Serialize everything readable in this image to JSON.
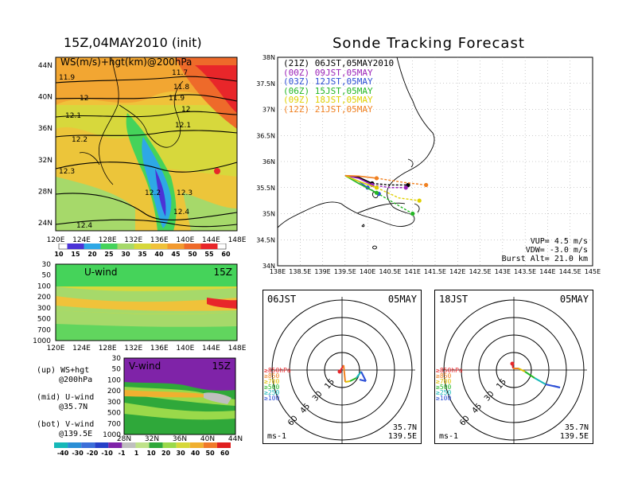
{
  "colors": {
    "ws_scale": [
      "#4b33d6",
      "#2ea8e6",
      "#45d35a",
      "#a6d96a",
      "#d7d83c",
      "#f0c23a",
      "#f29a2f",
      "#ee6a2a",
      "#e8262a"
    ],
    "v_scale": [
      "#16b8b8",
      "#2a8fd6",
      "#3b6fd9",
      "#2640c8",
      "#7f23a8",
      "#bfbfbf",
      "#bfe28a",
      "#2fa83a",
      "#9ad94a",
      "#d6d83a",
      "#f0b030",
      "#f07a2a",
      "#e02020"
    ],
    "path_21Z": "#000000",
    "path_00Z": "#9b22b8",
    "path_03Z": "#2c4fd6",
    "path_06Z": "#24b824",
    "path_09Z": "#e0d000",
    "path_12Z": "#f08020"
  },
  "left_top": {
    "title": "15Z,04MAY2010 (init)",
    "overlay_label": "WS(m/s)+hgt(km)@200hPa",
    "contour_labels": [
      "11.9",
      "11.7",
      "11.8",
      "12",
      "11.9",
      "12",
      "12.1",
      "12.1",
      "12.2",
      "12.3",
      "12.2",
      "12.3",
      "12.4",
      "12.4"
    ]
  },
  "left_mid": {
    "title": "U-wind",
    "time": "15Z"
  },
  "left_bot": {
    "title": "V-wind",
    "time": "15Z"
  },
  "notes": [
    {
      "a": "(up) WS+hgt",
      "b": "@200hPa"
    },
    {
      "a": "(mid) U-wind",
      "b": "@35.7N"
    },
    {
      "a": "(bot) V-wind",
      "b": "@139.5E"
    }
  ],
  "sonde": {
    "title": "Sonde Tracking Forecast",
    "legend": [
      {
        "code": "(21Z)",
        "text": "06JST,05MAY2010",
        "color": "#000000"
      },
      {
        "code": "(00Z)",
        "text": "09JST,05MAY",
        "color": "#9b22b8"
      },
      {
        "code": "(03Z)",
        "text": "12JST,05MAY",
        "color": "#2c4fd6"
      },
      {
        "code": "(06Z)",
        "text": "15JST,05MAY",
        "color": "#24b824"
      },
      {
        "code": "(09Z)",
        "text": "18JST,05MAY",
        "color": "#e0d000"
      },
      {
        "code": "(12Z)",
        "text": "21JST,05MAY",
        "color": "#f08020"
      }
    ],
    "vup": "VUP= 4.5 m/s",
    "vdw": "VDW= -3.0 m/s",
    "burst": "Burst Alt= 21.0 km"
  },
  "hodo_left": {
    "time": "06JST",
    "date": "05MAY",
    "lat": "35.7N",
    "lon": "139.5E",
    "unit": "ms-1"
  },
  "hodo_right": {
    "time": "18JST",
    "date": "05MAY",
    "lat": "35.7N",
    "lon": "139.5E",
    "unit": "ms-1"
  },
  "hodo_rings": [
    "15",
    "30",
    "45",
    "60"
  ],
  "hodo_levels": [
    {
      "label": "≥850hPa",
      "color": "#e8262a"
    },
    {
      "label": "≥850",
      "color": "#f08020"
    },
    {
      "label": "≥700",
      "color": "#e0c000"
    },
    {
      "label": "≥500",
      "color": "#24b824"
    },
    {
      "label": "≥250",
      "color": "#16b8b8"
    },
    {
      "label": "≥100",
      "color": "#2c4fd6"
    }
  ],
  "chart_data": [
    {
      "type": "heatmap",
      "title": "15Z,04MAY2010 (init)",
      "subtitle": "WS(m/s)+hgt(km)@200hPa",
      "x_ticks": [
        "120E",
        "124E",
        "128E",
        "132E",
        "136E",
        "140E",
        "144E",
        "148E"
      ],
      "y_ticks": [
        "24N",
        "28N",
        "32N",
        "36N",
        "40N",
        "44N"
      ],
      "colorbar": [
        "10",
        "15",
        "20",
        "25",
        "30",
        "35",
        "40",
        "45",
        "50",
        "55",
        "60"
      ]
    },
    {
      "type": "heatmap",
      "title": "U-wind",
      "x_ticks": [
        "120E",
        "124E",
        "128E",
        "132E",
        "136E",
        "140E",
        "144E",
        "148E"
      ],
      "y_ticks": [
        "30",
        "50",
        "100",
        "200",
        "300",
        "500",
        "700",
        "1000"
      ]
    },
    {
      "type": "heatmap",
      "title": "V-wind",
      "x_ticks": [
        "28N",
        "32N",
        "36N",
        "40N",
        "44N"
      ],
      "y_ticks": [
        "30",
        "50",
        "100",
        "200",
        "300",
        "500",
        "700",
        "1000"
      ],
      "colorbar": [
        "-40",
        "-30",
        "-20",
        "-10",
        "-1",
        "1",
        "10",
        "20",
        "30",
        "40",
        "50",
        "60"
      ]
    },
    {
      "type": "line",
      "title": "Sonde Tracking Forecast",
      "x_ticks": [
        "138E",
        "138.5E",
        "139E",
        "139.5E",
        "140E",
        "140.5E",
        "141E",
        "141.5E",
        "142E",
        "142.5E",
        "143E",
        "143.5E",
        "144E",
        "144.5E",
        "145E"
      ],
      "y_ticks": [
        "34N",
        "34.5N",
        "35N",
        "35.5N",
        "36N",
        "36.5N",
        "37N",
        "37.5N",
        "38N"
      ],
      "xlim": [
        138,
        145
      ],
      "ylim": [
        34,
        38
      ],
      "series": [
        {
          "name": "(21Z) 06JST,05MAY2010",
          "x": [
            139.5,
            139.8,
            140.1,
            140.5,
            140.9
          ],
          "y": [
            35.73,
            35.7,
            35.58,
            35.55,
            35.55
          ]
        },
        {
          "name": "(00Z) 09JST,05MAY",
          "x": [
            139.5,
            139.8,
            140.1,
            140.5,
            140.85
          ],
          "y": [
            35.73,
            35.68,
            35.55,
            35.5,
            35.5
          ]
        },
        {
          "name": "(03Z) 12JST,05MAY",
          "x": [
            139.5,
            139.8,
            140.0,
            140.2,
            140.25
          ],
          "y": [
            35.73,
            35.62,
            35.5,
            35.4,
            35.38
          ]
        },
        {
          "name": "(06Z) 15JST,05MAY",
          "x": [
            139.5,
            139.8,
            140.2,
            140.7,
            141.0
          ],
          "y": [
            35.73,
            35.58,
            35.4,
            35.15,
            35.0
          ]
        },
        {
          "name": "(09Z) 18JST,05MAY",
          "x": [
            139.5,
            139.8,
            140.2,
            140.7,
            141.15
          ],
          "y": [
            35.73,
            35.62,
            35.5,
            35.3,
            35.25
          ]
        },
        {
          "name": "(12Z) 21JST,05MAY",
          "x": [
            139.5,
            139.8,
            140.2,
            140.8,
            141.3
          ],
          "y": [
            35.73,
            35.72,
            35.68,
            35.6,
            35.55
          ]
        }
      ]
    }
  ]
}
